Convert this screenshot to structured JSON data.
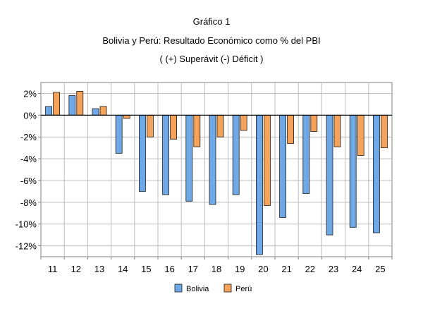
{
  "chart_data": {
    "type": "bar",
    "title_lines": [
      "Gráfico 1",
      "Bolivia y Perú: Resultado Económico como % del PBI",
      "( (+) Superávit  (-) Déficit )"
    ],
    "categories": [
      "11",
      "12",
      "13",
      "14",
      "15",
      "16",
      "17",
      "18",
      "19",
      "20",
      "21",
      "22",
      "23",
      "24",
      "25"
    ],
    "series": [
      {
        "name": "Bolivia",
        "color": "#6fa8e6",
        "values": [
          0.8,
          1.8,
          0.6,
          -3.5,
          -7.0,
          -7.3,
          -7.9,
          -8.2,
          -7.3,
          -12.8,
          -9.4,
          -7.2,
          -11.0,
          -10.3,
          -10.8
        ]
      },
      {
        "name": "Perú",
        "color": "#f5a25a",
        "values": [
          2.1,
          2.2,
          0.8,
          -0.3,
          -2.0,
          -2.2,
          -2.9,
          -2.0,
          -1.4,
          -8.3,
          -2.6,
          -1.5,
          -2.9,
          -3.7,
          -3.0
        ]
      }
    ],
    "ylim": [
      -13,
      3
    ],
    "yticks": [
      2,
      0,
      -2,
      -4,
      -6,
      -8,
      -10,
      -12
    ],
    "ytick_labels": [
      "2%",
      "0%",
      "-2%",
      "-4%",
      "-6%",
      "-8%",
      "-10%",
      "-12%"
    ],
    "grid": true,
    "legend_position": "bottom"
  }
}
